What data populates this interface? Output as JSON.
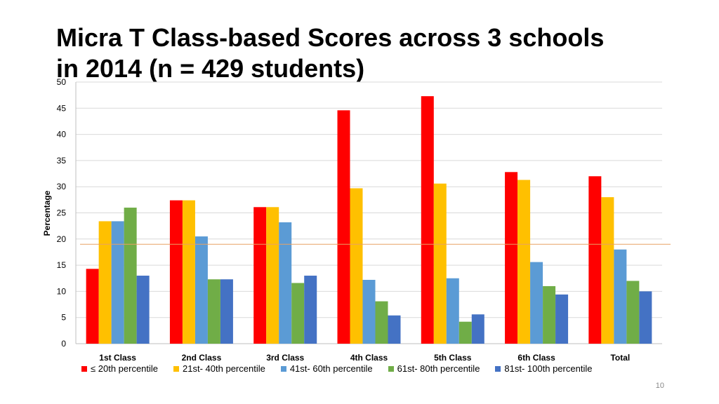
{
  "slide": {
    "title_line1": "Micra T Class-based Scores across 3 schools",
    "title_line2": "in 2014 (n = 429 students)",
    "page_number": "10"
  },
  "chart_data": {
    "type": "bar",
    "title": "Micra T Class-based Scores across 3 schools in 2014 (n = 429 students)",
    "xlabel": "",
    "ylabel": "Percentage",
    "ylim": [
      0,
      50
    ],
    "yticks": [
      0,
      5,
      10,
      15,
      20,
      25,
      30,
      35,
      40,
      45,
      50
    ],
    "grid": true,
    "legend_position": "bottom",
    "categories": [
      "1st Class",
      "2nd Class",
      "3rd Class",
      "4th Class",
      "5th Class",
      "6th Class",
      "Total"
    ],
    "series": [
      {
        "name": "≤ 20th percentile",
        "color": "#FF0000",
        "values": [
          14.3,
          27.4,
          26.1,
          44.6,
          47.3,
          32.8,
          32.0
        ]
      },
      {
        "name": "21st- 40th percentile",
        "color": "#FFC000",
        "values": [
          23.4,
          27.4,
          26.1,
          29.7,
          30.6,
          31.3,
          28.0
        ]
      },
      {
        "name": "41st- 60th percentile",
        "color": "#5B9BD5",
        "values": [
          23.4,
          20.5,
          23.2,
          12.2,
          12.5,
          15.6,
          18.0
        ]
      },
      {
        "name": "61st- 80th percentile",
        "color": "#70AD47",
        "values": [
          26.0,
          12.3,
          11.6,
          8.1,
          4.2,
          11.0,
          12.0
        ]
      },
      {
        "name": "81st- 100th percentile",
        "color": "#4472C4",
        "values": [
          13.0,
          12.3,
          13.0,
          5.4,
          5.6,
          9.4,
          10.0
        ]
      }
    ],
    "reference_line": {
      "value": 19,
      "color": "#E8A165"
    }
  }
}
